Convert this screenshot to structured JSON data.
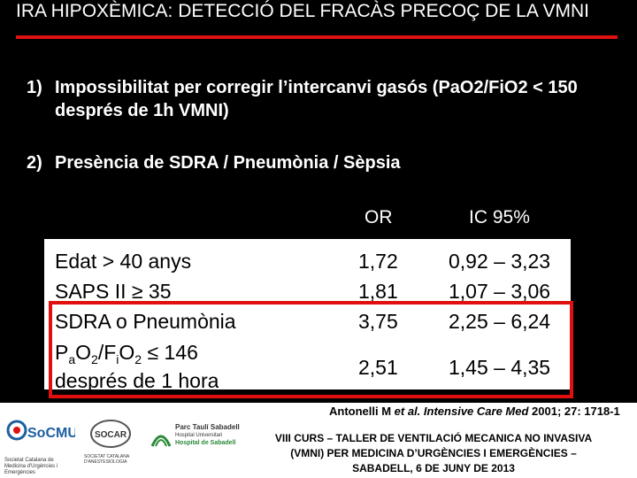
{
  "title": "IRA HIPOXÈMICA: DETECCIÓ DEL FRACÀS PRECOÇ DE LA VMNI",
  "items": [
    {
      "num": "1)",
      "text": "Impossibilitat per corregir l’intercanvi gasós (PaO2/FiO2 < 150 després de 1h VMNI)"
    },
    {
      "num": "2)",
      "text": "Presència de SDRA / Pneumònia / Sèpsia"
    }
  ],
  "table": {
    "headers": {
      "or": "OR",
      "ic": "IC 95%"
    },
    "rows": [
      {
        "label": "Edat > 40 anys",
        "or": "1,72",
        "ic": "0,92 – 3,23"
      },
      {
        "label": "SAPS II ≥ 35",
        "or": "1,81",
        "ic": "1,07 – 3,06"
      },
      {
        "label": "SDRA o Pneumònia",
        "or": "3,75",
        "ic": "2,25 – 6,24"
      },
      {
        "label_parts": [
          "P",
          "a",
          "O",
          "2",
          "/F",
          "i",
          "O",
          "2",
          " ≤ 146"
        ],
        "label_line2": "després de 1 hora",
        "or": "2,51",
        "ic": "1,45 – 4,35"
      }
    ]
  },
  "citation": {
    "author": "Antonelli M",
    "etal": "et al.",
    "journal": "Intensive Care Med",
    "rest": "2001; 27: 1718-1"
  },
  "footer": {
    "line1": "VIII CURS – TALLER DE VENTILACIÓ MECANICA NO INVASIVA",
    "line2": "(VMNI) PER MEDICINA D’URGÈNCIES I EMERGÈNCIES –",
    "line3": "SABADELL, 6 DE JUNY DE 2013"
  },
  "logos": {
    "socmue": "SoCMUE",
    "socmue_sub": "Societat Catalana de Medicina d'Urgències i Emergències",
    "socar": "SOCAR",
    "socar_sub": "SOCIETAT CATALANA D'ANESTESIOLOGIA",
    "hospital1": "Parc Taulí Sabadell",
    "hospital2": "Hospital Universitari",
    "hospital3": "Hospital de Sabadell"
  },
  "colors": {
    "accent": "#e01010",
    "hospital_green": "#2a8a3a"
  }
}
